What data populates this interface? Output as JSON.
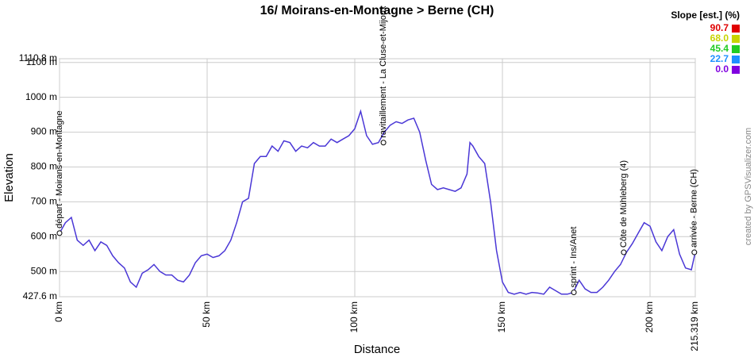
{
  "chart_data": {
    "type": "line",
    "title": "16/ Moirans-en-Montagne > Berne (CH)",
    "x_label": "Distance",
    "y_label": "Elevation",
    "credit": "created by GPSVisualizer.com",
    "color": "#4a37d6",
    "xlim": [
      0,
      215.319
    ],
    "ylim": [
      427.6,
      1110.8
    ],
    "grid": true,
    "xticks": [
      {
        "value": 0,
        "label": "0 km"
      },
      {
        "value": 50,
        "label": "50 km"
      },
      {
        "value": 100,
        "label": "100 km"
      },
      {
        "value": 150,
        "label": "150 km"
      },
      {
        "value": 200,
        "label": "200 km"
      },
      {
        "value": 215.319,
        "label": "215.319 km"
      }
    ],
    "yticks": [
      {
        "value": 427.6,
        "label": "427.6 m"
      },
      {
        "value": 500,
        "label": "500 m"
      },
      {
        "value": 600,
        "label": "600 m"
      },
      {
        "value": 700,
        "label": "700 m"
      },
      {
        "value": 800,
        "label": "800 m"
      },
      {
        "value": 900,
        "label": "900 m"
      },
      {
        "value": 1000,
        "label": "1000 m"
      },
      {
        "value": 1100,
        "label": "1100 m"
      },
      {
        "value": 1110.8,
        "label": "1110.8 m"
      }
    ],
    "x": [
      0,
      2,
      4,
      6,
      8,
      10,
      12,
      14,
      16,
      18,
      20,
      22,
      24,
      26,
      28,
      30,
      32,
      34,
      36,
      38,
      40,
      42,
      44,
      46,
      48,
      50,
      52,
      54,
      56,
      58,
      60,
      62,
      64,
      66,
      68,
      70,
      72,
      74,
      76,
      78,
      80,
      82,
      84,
      86,
      88,
      90,
      92,
      94,
      96,
      98,
      100,
      102,
      104,
      106,
      108,
      110,
      112,
      114,
      116,
      118,
      120,
      122,
      124,
      126,
      128,
      130,
      132,
      134,
      136,
      138,
      139,
      140,
      142,
      144,
      146,
      148,
      150,
      152,
      154,
      156,
      158,
      160,
      162,
      164,
      166,
      168,
      170,
      172,
      174,
      176,
      178,
      180,
      182,
      184,
      186,
      188,
      190,
      192,
      194,
      196,
      198,
      200,
      202,
      204,
      206,
      208,
      210,
      212,
      214,
      215.319
    ],
    "values": [
      610,
      640,
      655,
      590,
      575,
      590,
      560,
      585,
      575,
      545,
      525,
      510,
      470,
      455,
      495,
      505,
      520,
      500,
      490,
      490,
      475,
      470,
      490,
      525,
      545,
      550,
      540,
      545,
      560,
      590,
      640,
      700,
      710,
      810,
      830,
      830,
      860,
      845,
      875,
      870,
      845,
      860,
      855,
      870,
      860,
      860,
      880,
      870,
      880,
      890,
      910,
      960,
      890,
      865,
      870,
      900,
      920,
      930,
      925,
      935,
      940,
      900,
      820,
      750,
      735,
      740,
      735,
      730,
      740,
      780,
      870,
      860,
      830,
      810,
      700,
      560,
      470,
      440,
      435,
      440,
      435,
      440,
      438,
      435,
      455,
      445,
      435,
      435,
      440,
      475,
      450,
      440,
      440,
      455,
      475,
      500,
      520,
      555,
      580,
      610,
      640,
      630,
      585,
      560,
      600,
      620,
      550,
      510,
      505,
      555
    ],
    "annotations": [
      {
        "text": "départ - Moirans-en-Montagne",
        "x": 0,
        "y": 610
      },
      {
        "text": "ravitaillement - La Cluse-et-Mijoux",
        "x": 109.7,
        "y": 870
      },
      {
        "text": "sprint - Ins/Anet",
        "x": 174.2,
        "y": 440
      },
      {
        "text": "Côte de Mühleberg (4)",
        "x": 191.1,
        "y": 555
      },
      {
        "text": "arrivée - Berne (CH)",
        "x": 215,
        "y": 555
      }
    ],
    "legend": {
      "title": "Slope [est.] (%)",
      "values": [
        90.7,
        68.0,
        45.4,
        22.7,
        0.0
      ],
      "value_labels": [
        "90.7",
        "68.0",
        "45.4",
        "22.7",
        "0.0"
      ],
      "colors": [
        "#e00000",
        "#c8d400",
        "#22cc22",
        "#1e90ff",
        "#8000e0"
      ]
    }
  }
}
